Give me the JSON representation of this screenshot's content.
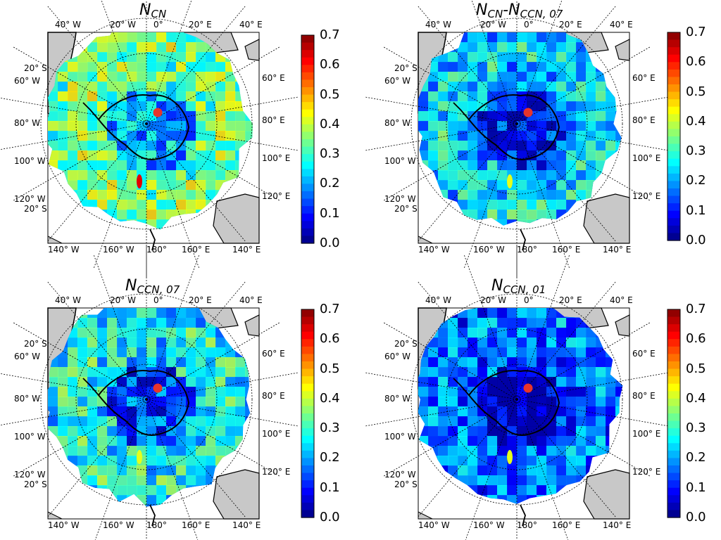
{
  "colorscale": {
    "min": 0.0,
    "max": 0.7,
    "ticks": [
      "0.7",
      "0.6",
      "0.5",
      "0.4",
      "0.3",
      "0.2",
      "0.1",
      "0.0"
    ],
    "colormap": "jet"
  },
  "marker_color": "#e8342b",
  "coast_color": "#000000",
  "land_color": "#c8c8c8",
  "longitude_labels_top": [
    "40° W",
    "20° W",
    "0°",
    "20° E",
    "40° E"
  ],
  "longitude_labels_bottom": [
    "140° W",
    "160° W",
    "180°",
    "160° E",
    "140° E"
  ],
  "lat_label": "20° S",
  "lon_labels_left": [
    "60° W",
    "80° W",
    "100° W",
    "120° W"
  ],
  "lon_labels_right": [
    "60° E",
    "80° E",
    "100° E",
    "120° E"
  ],
  "panels": [
    {
      "title_main": "N",
      "title_sub": "CN",
      "title_mid": "",
      "title_main2": "",
      "title_sub2": "",
      "field_level": "high"
    },
    {
      "title_main": "N",
      "title_sub": "CN",
      "title_mid": "-",
      "title_main2": "N",
      "title_sub2": "CCN, 07",
      "field_level": "mid"
    },
    {
      "title_main": "N",
      "title_sub": "CCN, 07",
      "title_mid": "",
      "title_main2": "",
      "title_sub2": "",
      "field_level": "mid2"
    },
    {
      "title_main": "N",
      "title_sub": "CCN, 01",
      "title_mid": "",
      "title_main2": "",
      "title_sub2": "",
      "field_level": "low"
    }
  ]
}
